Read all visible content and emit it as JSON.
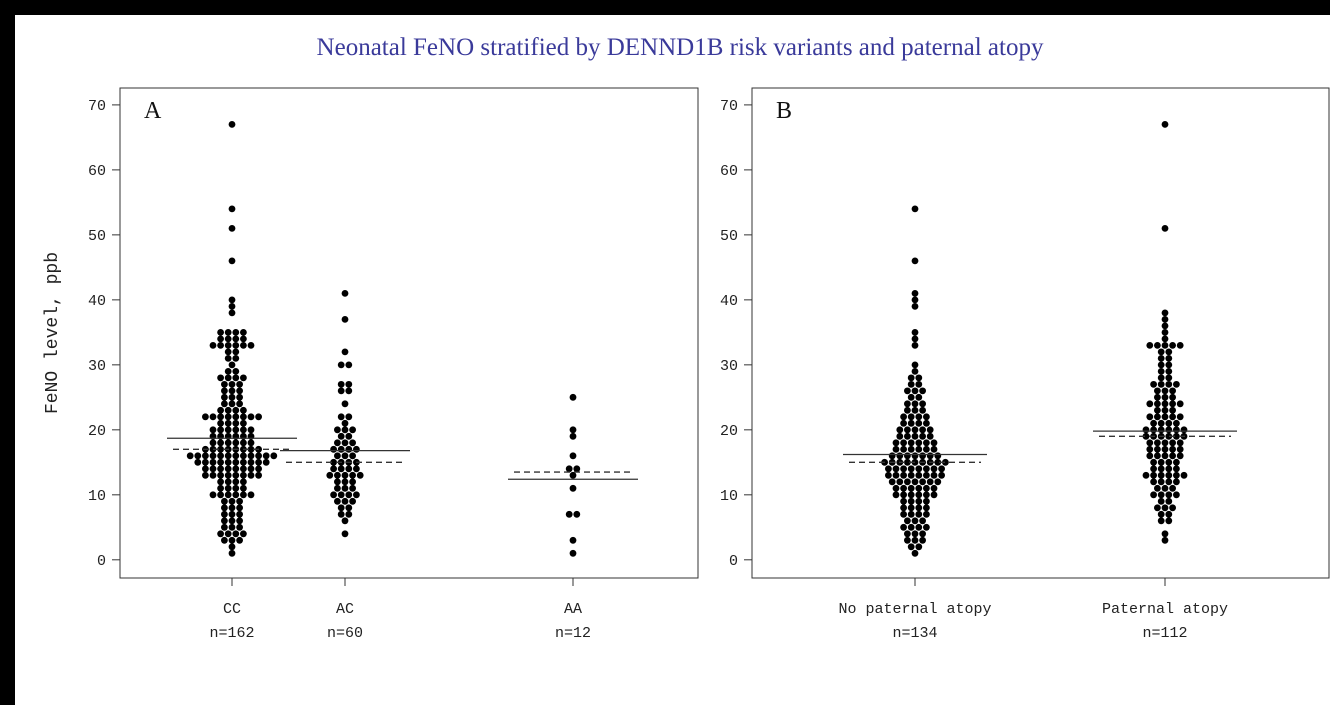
{
  "title": "Neonatal FeNO stratified by DENND1B risk variants and paternal atopy",
  "chart_data": [
    {
      "type": "dot",
      "panel": "A",
      "y_label": "FeNO level, ppb",
      "ylim": [
        -2.8,
        72.6
      ],
      "yticks": [
        0,
        10,
        20,
        30,
        40,
        50,
        60,
        70
      ],
      "groups": [
        {
          "label": "CC",
          "n_label": "n=162",
          "mean": 18.7,
          "median": 17,
          "values": [
            1,
            2,
            3,
            3,
            3,
            4,
            4,
            4,
            4,
            5,
            5,
            5,
            6,
            6,
            6,
            7,
            7,
            7,
            8,
            8,
            8,
            9,
            9,
            9,
            10,
            10,
            10,
            10,
            10,
            10,
            11,
            11,
            11,
            11,
            12,
            12,
            12,
            12,
            13,
            13,
            13,
            13,
            13,
            13,
            13,
            13,
            14,
            14,
            14,
            14,
            14,
            14,
            14,
            14,
            15,
            15,
            15,
            15,
            15,
            15,
            15,
            15,
            15,
            15,
            16,
            16,
            16,
            16,
            16,
            16,
            16,
            16,
            16,
            16,
            16,
            16,
            17,
            17,
            17,
            17,
            17,
            17,
            17,
            17,
            18,
            18,
            18,
            18,
            18,
            18,
            19,
            19,
            19,
            19,
            19,
            19,
            20,
            20,
            20,
            20,
            20,
            20,
            21,
            21,
            21,
            21,
            22,
            22,
            22,
            22,
            22,
            22,
            22,
            22,
            23,
            23,
            23,
            23,
            24,
            24,
            24,
            25,
            25,
            25,
            26,
            26,
            26,
            27,
            27,
            27,
            28,
            28,
            28,
            28,
            29,
            29,
            30,
            31,
            31,
            32,
            32,
            33,
            33,
            33,
            33,
            33,
            33,
            34,
            34,
            34,
            34,
            35,
            35,
            35,
            35,
            38,
            39,
            40,
            46,
            51,
            54,
            67
          ]
        },
        {
          "label": "AC",
          "n_label": "n=60",
          "mean": 16.8,
          "median": 15,
          "values": [
            4,
            6,
            7,
            7,
            8,
            8,
            9,
            9,
            9,
            10,
            10,
            10,
            10,
            11,
            11,
            11,
            12,
            12,
            12,
            13,
            13,
            13,
            13,
            13,
            14,
            14,
            14,
            14,
            15,
            15,
            15,
            15,
            16,
            16,
            16,
            17,
            17,
            17,
            17,
            18,
            18,
            18,
            19,
            19,
            20,
            20,
            20,
            21,
            22,
            22,
            24,
            26,
            26,
            27,
            27,
            30,
            30,
            32,
            37,
            41
          ]
        },
        {
          "label": "AA",
          "n_label": "n=12",
          "mean": 12.4,
          "median": 13.5,
          "values": [
            1,
            3,
            7,
            7,
            11,
            13,
            14,
            14,
            16,
            19,
            20,
            25
          ]
        }
      ]
    },
    {
      "type": "dot",
      "panel": "B",
      "ylim": [
        -2.8,
        72.6
      ],
      "yticks": [
        0,
        10,
        20,
        30,
        40,
        50,
        60,
        70
      ],
      "groups": [
        {
          "label": "No paternal atopy",
          "n_label": "n=134",
          "mean": 16.2,
          "median": 15,
          "values": [
            1,
            2,
            2,
            3,
            3,
            3,
            4,
            4,
            4,
            5,
            5,
            5,
            5,
            6,
            6,
            6,
            7,
            7,
            7,
            7,
            8,
            8,
            8,
            8,
            9,
            9,
            9,
            9,
            10,
            10,
            10,
            10,
            10,
            10,
            11,
            11,
            11,
            11,
            11,
            11,
            12,
            12,
            12,
            12,
            12,
            12,
            12,
            13,
            13,
            13,
            13,
            13,
            13,
            13,
            13,
            14,
            14,
            14,
            14,
            14,
            14,
            14,
            14,
            15,
            15,
            15,
            15,
            15,
            15,
            15,
            15,
            15,
            16,
            16,
            16,
            16,
            16,
            16,
            16,
            17,
            17,
            17,
            17,
            17,
            17,
            18,
            18,
            18,
            18,
            18,
            18,
            19,
            19,
            19,
            19,
            19,
            20,
            20,
            20,
            20,
            20,
            21,
            21,
            21,
            21,
            22,
            22,
            22,
            22,
            23,
            23,
            23,
            24,
            24,
            24,
            25,
            25,
            26,
            26,
            26,
            27,
            27,
            28,
            28,
            29,
            30,
            33,
            34,
            35,
            39,
            40,
            41,
            46,
            54
          ]
        },
        {
          "label": "Paternal atopy",
          "n_label": "n=112",
          "mean": 19.8,
          "median": 19,
          "values": [
            3,
            4,
            6,
            6,
            7,
            7,
            8,
            8,
            8,
            9,
            9,
            10,
            10,
            10,
            10,
            11,
            11,
            11,
            12,
            12,
            12,
            12,
            13,
            13,
            13,
            13,
            13,
            13,
            14,
            14,
            14,
            14,
            15,
            15,
            15,
            15,
            16,
            16,
            16,
            16,
            16,
            17,
            17,
            17,
            17,
            17,
            18,
            18,
            18,
            18,
            18,
            19,
            19,
            19,
            19,
            19,
            19,
            20,
            20,
            20,
            20,
            20,
            20,
            21,
            21,
            21,
            21,
            22,
            22,
            22,
            22,
            22,
            23,
            23,
            23,
            24,
            24,
            24,
            24,
            24,
            25,
            25,
            25,
            26,
            26,
            26,
            27,
            27,
            27,
            27,
            28,
            28,
            29,
            29,
            30,
            30,
            31,
            31,
            32,
            32,
            33,
            33,
            33,
            33,
            33,
            34,
            35,
            36,
            37,
            38,
            51,
            67
          ]
        }
      ]
    }
  ]
}
